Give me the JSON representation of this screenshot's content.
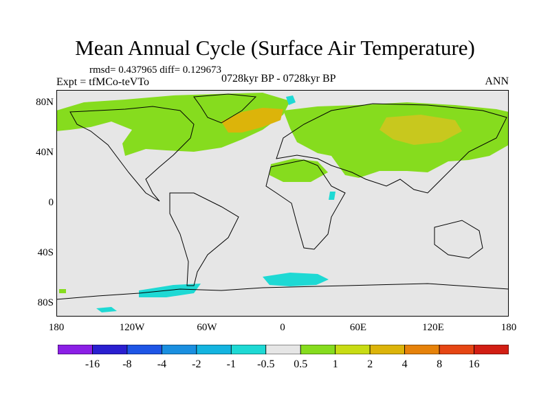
{
  "title": "Mean Annual Cycle (Surface Air Temperature)",
  "stats_text": "rmsd= 0.437965  diff= 0.129673",
  "experiment_text": "Expt = tfMCo-teVTo",
  "period_text": "0728kyr BP - 0728kyr BP",
  "season": "ANN",
  "y_axis_labels": [
    "80N",
    "40N",
    "0",
    "40S",
    "80S"
  ],
  "x_axis_labels": [
    "180",
    "120W",
    "60W",
    "0",
    "60E",
    "120E",
    "180"
  ],
  "colorbar": {
    "labels": [
      "-16",
      "-8",
      "-4",
      "-2",
      "-1",
      "-0.5",
      "0.5",
      "1",
      "2",
      "4",
      "8",
      "16"
    ],
    "colors": [
      "#8b1fe6",
      "#2a1fd0",
      "#1e55e6",
      "#1a8fe0",
      "#14b4e0",
      "#1ed9d4",
      "#e6e6e6",
      "#86dc1e",
      "#c8dc14",
      "#dcb40a",
      "#e6820a",
      "#e64614",
      "#d21e14"
    ]
  },
  "colors": {
    "background": "#e6e6e6",
    "positive_weak": "#86dc1e",
    "positive_mid": "#b4c81e",
    "positive_strong": "#dca014",
    "negative_weak": "#1ed9d4",
    "coastline": "#000000"
  }
}
